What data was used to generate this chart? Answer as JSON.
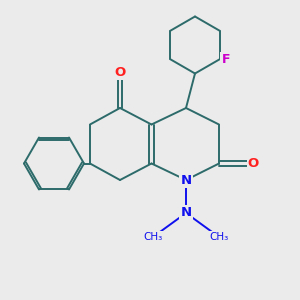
{
  "background_color": "#ebebeb",
  "bond_color": "#2d6b6b",
  "atom_colors": {
    "O": "#ff2020",
    "N": "#1010ee",
    "F": "#cc00cc"
  },
  "figsize": [
    3.0,
    3.0
  ],
  "dpi": 100
}
